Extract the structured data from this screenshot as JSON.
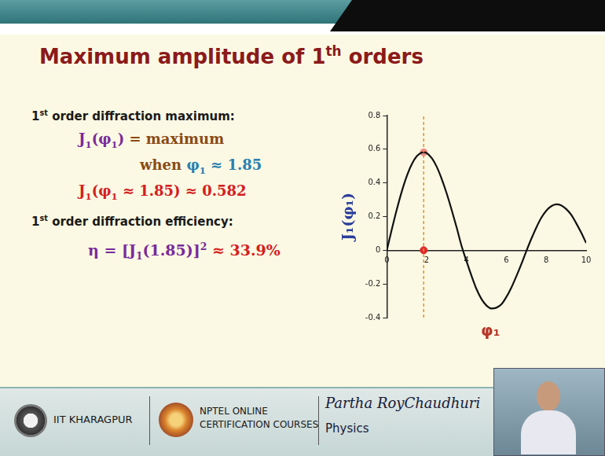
{
  "slide": {
    "title": [
      {
        "text": "Maximum amplitude of 1"
      },
      {
        "text": "th",
        "sup": true
      },
      {
        "text": " orders"
      }
    ],
    "lines": [
      {
        "kind": "heading",
        "segments": [
          {
            "text": "1",
            "color": "#1a1a1a"
          },
          {
            "text": "st",
            "sup": true,
            "color": "#1a1a1a"
          },
          {
            "text": " order diffraction maximum:",
            "color": "#1a1a1a"
          }
        ]
      },
      {
        "kind": "formula",
        "segments": [
          {
            "text": "J",
            "color": "#7a2a9a"
          },
          {
            "text": "1",
            "sub": true,
            "color": "#7a2a9a"
          },
          {
            "text": "(φ",
            "color": "#7a2a9a"
          },
          {
            "text": "1",
            "sub": true,
            "color": "#7a2a9a"
          },
          {
            "text": ")",
            "color": "#7a2a9a"
          },
          {
            "text": " = maximum",
            "color": "#8a4a14"
          }
        ]
      },
      {
        "kind": "formula",
        "segments": [
          {
            "text": "when ",
            "color": "#8a4a14"
          },
          {
            "text": "φ",
            "color": "#2a7fb0"
          },
          {
            "text": "1",
            "sub": true,
            "color": "#2a7fb0"
          },
          {
            "text": " ≈ 1.85",
            "color": "#2a7fb0"
          }
        ]
      },
      {
        "kind": "formula",
        "segments": [
          {
            "text": "J",
            "color": "#d42020"
          },
          {
            "text": "1",
            "sub": true,
            "color": "#d42020"
          },
          {
            "text": "(φ",
            "color": "#d42020"
          },
          {
            "text": "1",
            "sub": true,
            "color": "#d42020"
          },
          {
            "text": " ≈ 1.85) ≈ 0.582",
            "color": "#d42020"
          }
        ]
      },
      {
        "kind": "heading",
        "segments": [
          {
            "text": "1",
            "color": "#1a1a1a"
          },
          {
            "text": "st",
            "sup": true,
            "color": "#1a1a1a"
          },
          {
            "text": " order diffraction efficiency:",
            "color": "#1a1a1a"
          }
        ]
      },
      {
        "kind": "formula",
        "segments": [
          {
            "text": "η = [J",
            "color": "#7a2a9a"
          },
          {
            "text": "1",
            "sub": true,
            "color": "#7a2a9a"
          },
          {
            "text": "(1.85)]",
            "color": "#7a2a9a"
          },
          {
            "text": "2",
            "sup": true,
            "color": "#7a2a9a"
          },
          {
            "text": " ≈ 33.9%",
            "color": "#d42020"
          }
        ]
      }
    ],
    "footer": {
      "institute": "IIT KHARAGPUR",
      "course": [
        "NPTEL ONLINE",
        "CERTIFICATION COURSES"
      ],
      "author": "Partha RoyChaudhuri",
      "subject": "Physics"
    }
  },
  "chart_data": {
    "type": "line",
    "x_label": "φ₁",
    "y_label": "J₁(φ₁)",
    "x": [
      0,
      0.25,
      0.5,
      0.75,
      1,
      1.25,
      1.5,
      1.75,
      1.85,
      2,
      2.25,
      2.5,
      2.75,
      3,
      3.25,
      3.5,
      3.75,
      4,
      4.25,
      4.5,
      4.75,
      5,
      5.25,
      5.5,
      5.75,
      6,
      6.25,
      6.5,
      6.75,
      7,
      7.25,
      7.5,
      7.75,
      8,
      8.25,
      8.5,
      8.75,
      9,
      9.25,
      9.5,
      9.75,
      10
    ],
    "values": [
      0,
      0.124,
      0.242,
      0.349,
      0.44,
      0.511,
      0.558,
      0.58,
      0.582,
      0.577,
      0.548,
      0.497,
      0.425,
      0.339,
      0.241,
      0.137,
      0.026,
      -0.066,
      -0.152,
      -0.231,
      -0.29,
      -0.328,
      -0.346,
      -0.341,
      -0.321,
      -0.277,
      -0.221,
      -0.154,
      -0.082,
      -0.005,
      0.068,
      0.135,
      0.193,
      0.235,
      0.262,
      0.273,
      0.267,
      0.245,
      0.211,
      0.161,
      0.105,
      0.043
    ],
    "color": "#111111",
    "xlim": [
      0,
      10
    ],
    "xticks": [
      0,
      2,
      4,
      6,
      8,
      10
    ],
    "ylim": [
      -0.4,
      0.8
    ],
    "yticks": [
      -0.4,
      -0.2,
      0,
      0.2,
      0.4,
      0.6,
      0.8
    ],
    "grid": false,
    "vline": {
      "x": 1.85,
      "color": "#e8912d"
    },
    "highlight_points": {
      "x": [
        1.85,
        1.85
      ],
      "values": [
        0.582,
        0
      ],
      "colors": [
        "#f28a8a",
        "#e02a2a"
      ]
    }
  }
}
